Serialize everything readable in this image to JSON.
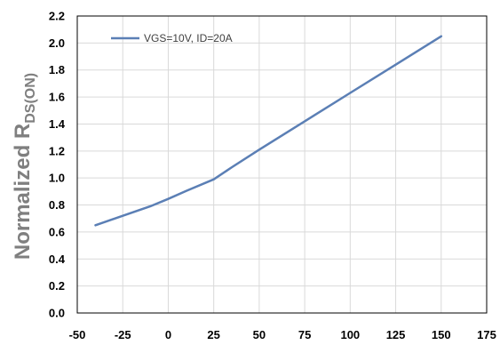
{
  "chart_data": {
    "type": "line",
    "title": "",
    "xlabel": "",
    "ylabel_main": "Normalized R",
    "ylabel_sub": "DS(ON)",
    "xlim": [
      -50,
      175
    ],
    "ylim": [
      0.0,
      2.2
    ],
    "xticks": [
      -50,
      -25,
      0,
      25,
      50,
      75,
      100,
      125,
      150,
      175
    ],
    "yticks": [
      "0.0",
      "0.2",
      "0.4",
      "0.6",
      "0.8",
      "1.0",
      "1.2",
      "1.4",
      "1.6",
      "1.8",
      "2.0",
      "2.2"
    ],
    "grid": true,
    "legend_position": "top-left",
    "series": [
      {
        "name": "VGS=10V, ID=20A",
        "color": "#5b7fb5",
        "points": [
          [
            -40,
            0.65
          ],
          [
            -25,
            0.72
          ],
          [
            -10,
            0.79
          ],
          [
            0,
            0.845
          ],
          [
            10,
            0.905
          ],
          [
            25,
            0.99
          ],
          [
            35,
            1.08
          ],
          [
            50,
            1.21
          ],
          [
            75,
            1.42
          ],
          [
            100,
            1.63
          ],
          [
            125,
            1.84
          ],
          [
            150,
            2.05
          ]
        ]
      }
    ]
  }
}
